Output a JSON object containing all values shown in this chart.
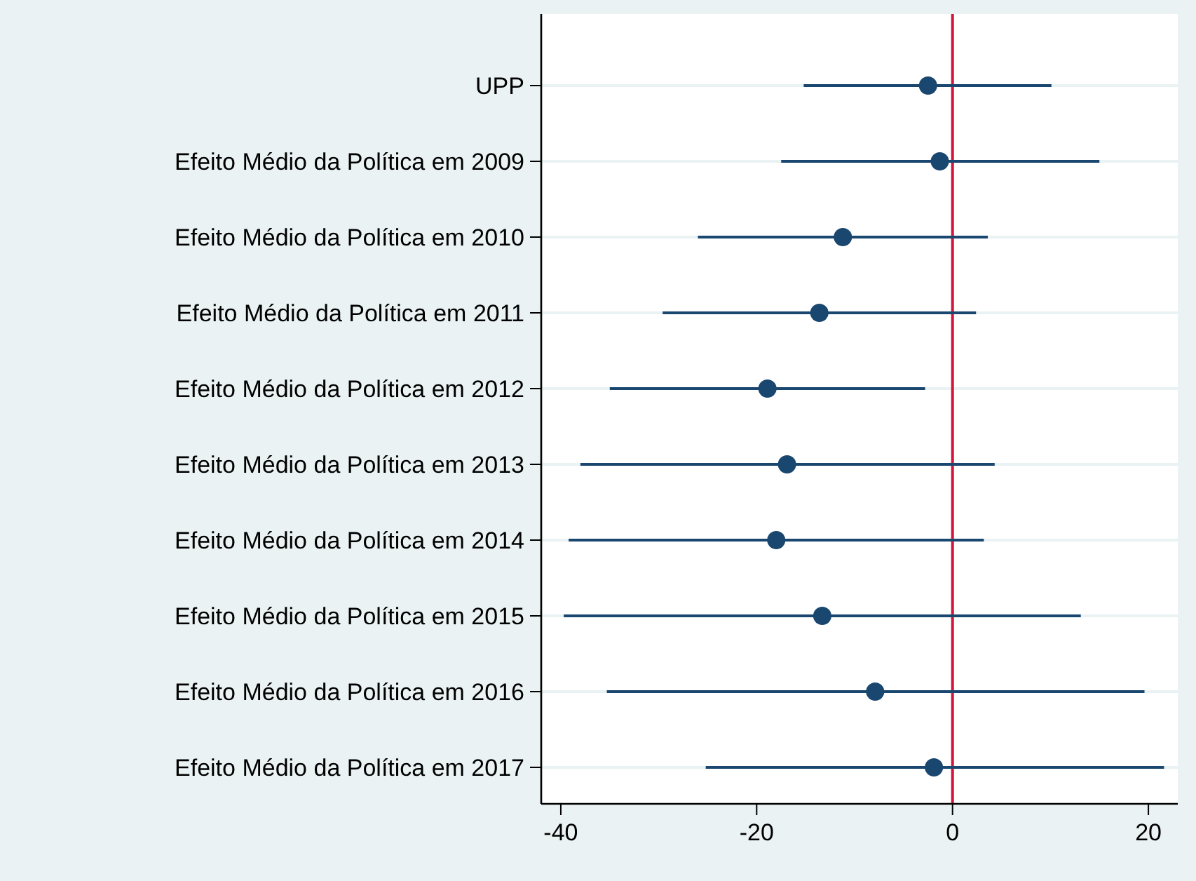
{
  "chart_data": {
    "type": "scatter",
    "orientation": "horizontal",
    "categories": [
      "UPP",
      "Efeito Médio da Política em 2009",
      "Efeito Médio da Política em 2010",
      "Efeito Médio da Política em 2011",
      "Efeito Médio da Política em 2012",
      "Efeito Médio da Política em 2013",
      "Efeito Médio da Política em 2014",
      "Efeito Médio da Política em 2015",
      "Efeito Médio da Política em 2016",
      "Efeito Médio da Política em 2017"
    ],
    "color": "#1a476f",
    "values": [
      -2.5,
      -1.3,
      -11.2,
      -13.6,
      -18.9,
      -16.9,
      -18.0,
      -13.3,
      -7.9,
      -1.9
    ],
    "errors": [
      [
        -15.2,
        10.1
      ],
      [
        -17.5,
        15.0
      ],
      [
        -26.0,
        3.6
      ],
      [
        -29.6,
        2.4
      ],
      [
        -35.0,
        -2.8
      ],
      [
        -38.0,
        4.3
      ],
      [
        -39.2,
        3.2
      ],
      [
        -39.7,
        13.1
      ],
      [
        -35.3,
        19.6
      ],
      [
        -25.2,
        21.6
      ]
    ],
    "xlim": [
      -42,
      23
    ],
    "xticks": [
      -40,
      -20,
      0,
      20
    ],
    "ref_lines": [
      {
        "axis": "x",
        "value": 0,
        "color": "#d6153b"
      }
    ],
    "grid": "y",
    "marker": "circle"
  }
}
